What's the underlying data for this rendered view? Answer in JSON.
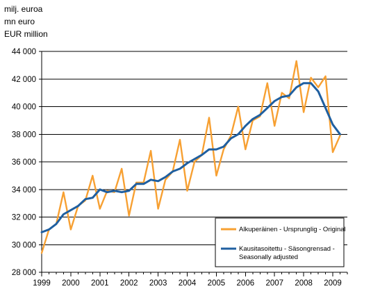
{
  "units": [
    "milj. euroa",
    "mn euro",
    "EUR million"
  ],
  "colors": {
    "original": "#F7A032",
    "adjusted": "#1F5FA0",
    "grid": "#000000",
    "legend_border": "#000000"
  },
  "legend": [
    {
      "label": "Alkuperäinen - Ursprunglig - Original",
      "series": "original"
    },
    {
      "label_lines": [
        "Kausitasoitettu - Säsongrensad -",
        "Seasonally adjusted"
      ],
      "series": "adjusted"
    }
  ],
  "chart_data": {
    "type": "line",
    "title": "",
    "xlabel": "",
    "ylabel": "",
    "ylim": [
      28000,
      44000
    ],
    "yticks": [
      28000,
      30000,
      32000,
      34000,
      36000,
      38000,
      40000,
      42000,
      44000
    ],
    "ytick_labels": [
      "28 000",
      "30 000",
      "32 000",
      "34 000",
      "36 000",
      "38 000",
      "40 000",
      "42 000",
      "44 000"
    ],
    "xlim": [
      1999.0,
      2009.5
    ],
    "xticks": [
      1999,
      2000,
      2001,
      2002,
      2003,
      2004,
      2005,
      2006,
      2007,
      2008,
      2009
    ],
    "xtick_labels": [
      "1999",
      "2000",
      "2001",
      "2002",
      "2003",
      "2004",
      "2005",
      "2006",
      "2007",
      "2008",
      "2009"
    ],
    "grid": true,
    "legend_position": "bottom-right",
    "x": [
      1999.0,
      1999.25,
      1999.5,
      1999.75,
      2000.0,
      2000.25,
      2000.5,
      2000.75,
      2001.0,
      2001.25,
      2001.5,
      2001.75,
      2002.0,
      2002.25,
      2002.5,
      2002.75,
      2003.0,
      2003.25,
      2003.5,
      2003.75,
      2004.0,
      2004.25,
      2004.5,
      2004.75,
      2005.0,
      2005.25,
      2005.5,
      2005.75,
      2006.0,
      2006.25,
      2006.5,
      2006.75,
      2007.0,
      2007.25,
      2007.5,
      2007.75,
      2008.0,
      2008.25,
      2008.5,
      2008.75,
      2009.0,
      2009.25
    ],
    "series": [
      {
        "name": "Alkuperäinen - Ursprunglig - Original",
        "key": "original",
        "values": [
          29400,
          31100,
          31500,
          33800,
          31100,
          32800,
          33200,
          35000,
          32600,
          33900,
          33800,
          35500,
          32100,
          34500,
          34500,
          36800,
          32600,
          34700,
          35300,
          37600,
          33900,
          36000,
          36500,
          39200,
          35000,
          36900,
          37900,
          40000,
          36900,
          39000,
          39300,
          41700,
          38600,
          41000,
          40600,
          43300,
          39600,
          42100,
          41400,
          42200,
          36700,
          37900
        ]
      },
      {
        "name": "Kausitasoitettu - Säsongrensad - Seasonally adjusted",
        "key": "adjusted",
        "values": [
          30900,
          31100,
          31500,
          32200,
          32500,
          32800,
          33300,
          33400,
          34000,
          33800,
          33900,
          33800,
          33900,
          34400,
          34400,
          34700,
          34600,
          34900,
          35300,
          35500,
          35900,
          36200,
          36500,
          36900,
          36900,
          37100,
          37700,
          38000,
          38600,
          39100,
          39400,
          39900,
          40400,
          40700,
          40800,
          41400,
          41700,
          41700,
          41100,
          39900,
          38700,
          38000
        ]
      }
    ]
  }
}
